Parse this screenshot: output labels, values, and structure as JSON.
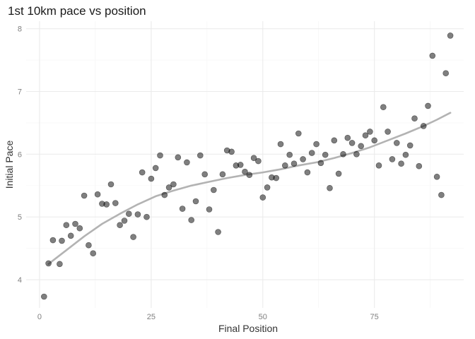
{
  "chart_data": {
    "type": "scatter",
    "title": "1st 10km pace vs position",
    "xlabel": "Final Position",
    "ylabel": "Initial Pace",
    "xlim": [
      -3,
      95
    ],
    "ylim": [
      3.55,
      8.12
    ],
    "x_ticks": [
      0,
      25,
      50,
      75
    ],
    "y_ticks": [
      4,
      5,
      6,
      7,
      8
    ],
    "x_ticks_minor": [
      12.5,
      37.5,
      62.5,
      87.5
    ],
    "y_ticks_minor": [
      4.5,
      5.5,
      6.5,
      7.5
    ],
    "grid": true,
    "legend": "none",
    "points": [
      [
        1,
        3.73
      ],
      [
        2,
        4.26
      ],
      [
        3,
        4.63
      ],
      [
        4.5,
        4.25
      ],
      [
        5,
        4.62
      ],
      [
        6,
        4.87
      ],
      [
        7,
        4.7
      ],
      [
        8,
        4.89
      ],
      [
        9,
        4.82
      ],
      [
        10,
        5.34
      ],
      [
        11,
        4.55
      ],
      [
        12,
        4.42
      ],
      [
        13,
        5.36
      ],
      [
        14,
        5.21
      ],
      [
        15,
        5.2
      ],
      [
        16,
        5.52
      ],
      [
        17,
        5.22
      ],
      [
        18,
        4.87
      ],
      [
        19,
        4.94
      ],
      [
        20,
        5.05
      ],
      [
        21,
        4.68
      ],
      [
        22,
        5.04
      ],
      [
        23,
        5.71
      ],
      [
        24,
        5.0
      ],
      [
        25,
        5.61
      ],
      [
        26,
        5.78
      ],
      [
        27,
        5.98
      ],
      [
        28,
        5.35
      ],
      [
        29,
        5.47
      ],
      [
        30,
        5.52
      ],
      [
        31,
        5.95
      ],
      [
        32,
        5.13
      ],
      [
        33,
        5.87
      ],
      [
        34,
        4.95
      ],
      [
        35,
        5.25
      ],
      [
        36,
        5.98
      ],
      [
        37,
        5.68
      ],
      [
        38,
        5.12
      ],
      [
        39,
        5.43
      ],
      [
        40,
        4.76
      ],
      [
        41,
        5.68
      ],
      [
        42,
        6.06
      ],
      [
        43,
        6.04
      ],
      [
        44,
        5.82
      ],
      [
        45,
        5.83
      ],
      [
        46,
        5.72
      ],
      [
        47,
        5.67
      ],
      [
        48,
        5.94
      ],
      [
        49,
        5.89
      ],
      [
        50,
        5.31
      ],
      [
        51,
        5.47
      ],
      [
        52,
        5.63
      ],
      [
        53,
        5.62
      ],
      [
        54,
        6.16
      ],
      [
        55,
        5.82
      ],
      [
        56,
        5.99
      ],
      [
        57,
        5.85
      ],
      [
        58,
        6.33
      ],
      [
        59,
        5.92
      ],
      [
        60,
        5.71
      ],
      [
        61,
        6.02
      ],
      [
        62,
        6.16
      ],
      [
        63,
        5.86
      ],
      [
        64,
        5.99
      ],
      [
        65,
        5.46
      ],
      [
        66,
        6.22
      ],
      [
        67,
        5.69
      ],
      [
        68,
        6.0
      ],
      [
        69,
        6.26
      ],
      [
        70,
        6.18
      ],
      [
        71,
        6.0
      ],
      [
        72,
        6.13
      ],
      [
        73,
        6.3
      ],
      [
        74,
        6.36
      ],
      [
        75,
        6.22
      ],
      [
        76,
        5.82
      ],
      [
        77,
        6.75
      ],
      [
        78,
        6.36
      ],
      [
        79,
        5.92
      ],
      [
        80,
        6.18
      ],
      [
        81,
        5.85
      ],
      [
        82,
        5.99
      ],
      [
        83,
        6.14
      ],
      [
        84,
        6.57
      ],
      [
        85,
        5.81
      ],
      [
        86,
        6.45
      ],
      [
        87,
        6.77
      ],
      [
        88,
        7.57
      ],
      [
        89,
        5.64
      ],
      [
        90,
        5.35
      ],
      [
        91,
        7.29
      ],
      [
        92,
        7.89
      ]
    ],
    "smooth_line": [
      [
        2,
        4.25
      ],
      [
        6,
        4.47
      ],
      [
        10,
        4.69
      ],
      [
        14,
        4.89
      ],
      [
        18,
        5.05
      ],
      [
        22,
        5.2
      ],
      [
        26,
        5.33
      ],
      [
        30,
        5.42
      ],
      [
        34,
        5.5
      ],
      [
        38,
        5.56
      ],
      [
        42,
        5.62
      ],
      [
        46,
        5.67
      ],
      [
        50,
        5.71
      ],
      [
        54,
        5.76
      ],
      [
        58,
        5.82
      ],
      [
        62,
        5.87
      ],
      [
        66,
        5.94
      ],
      [
        70,
        6.02
      ],
      [
        74,
        6.11
      ],
      [
        78,
        6.22
      ],
      [
        82,
        6.33
      ],
      [
        86,
        6.45
      ],
      [
        89,
        6.55
      ],
      [
        92,
        6.66
      ]
    ]
  }
}
